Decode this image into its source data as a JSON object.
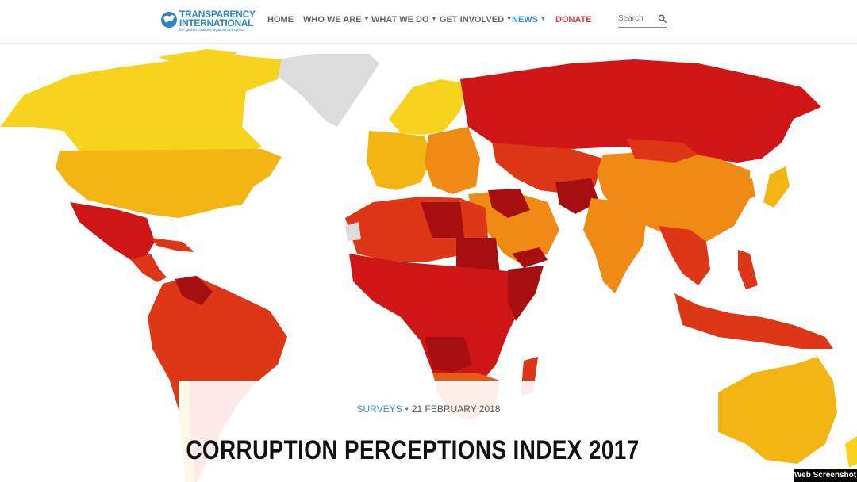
{
  "header": {
    "logo": {
      "name_line1": "TRANSPARENCY",
      "name_line2": "INTERNATIONAL",
      "tagline": "the global coalition against corruption"
    },
    "nav": [
      {
        "label": "HOME",
        "has_dropdown": false
      },
      {
        "label": "WHO WE ARE",
        "has_dropdown": true
      },
      {
        "label": "WHAT WE DO",
        "has_dropdown": true
      },
      {
        "label": "GET INVOLVED",
        "has_dropdown": true
      },
      {
        "label": "NEWS",
        "has_dropdown": true,
        "active": true
      },
      {
        "label": "DONATE",
        "has_dropdown": false
      }
    ],
    "search": {
      "placeholder": "Search",
      "icon": "search-icon"
    }
  },
  "map": {
    "legend_colors": {
      "very_clean": "#f8d31d",
      "clean": "#f3b513",
      "moderate": "#ef8a14",
      "elevated": "#e55a17",
      "high": "#dd3718",
      "very_high": "#cf1616",
      "highly_corrupt": "#a50f0f",
      "no_data": "#dcdcdc"
    }
  },
  "hero": {
    "category": "SURVEYS",
    "separator": "•",
    "date": "21 FEBRUARY 2018",
    "title": "CORRUPTION PERCEPTIONS INDEX 2017"
  },
  "watermark": "Web Screenshot",
  "colors": {
    "brand_blue": "#2f86c6",
    "news_blue": "#3b8fd0",
    "donate_red": "#e53a47"
  }
}
